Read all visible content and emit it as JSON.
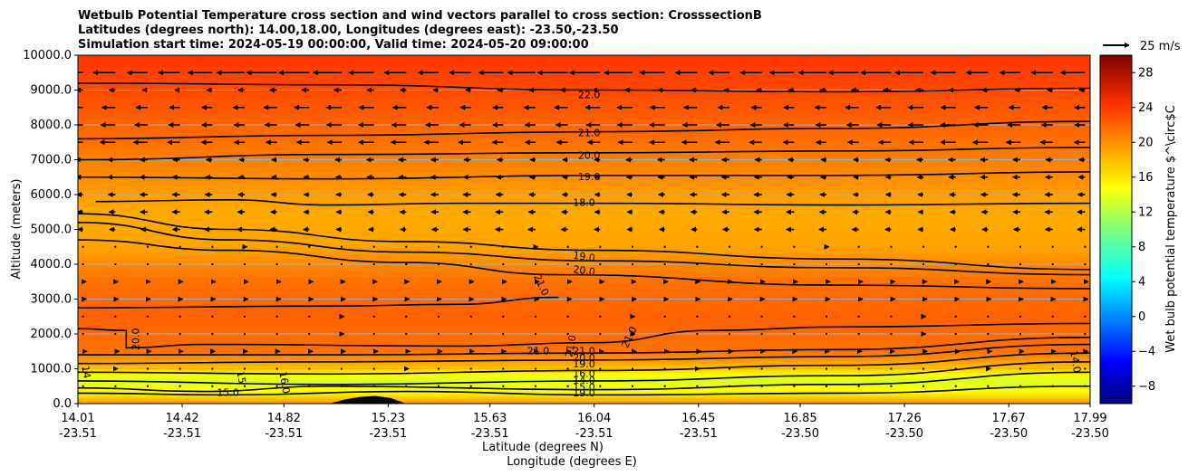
{
  "chart_data": {
    "type": "heatmap",
    "title_lines": [
      "Wetbulb Potential Temperature cross section and wind vectors parallel to cross section: CrosssectionB",
      "Latitudes (degrees north): 14.00,18.00, Longitudes (degrees east): -23.50,-23.50",
      "Simulation start time: 2024-05-19 00:00:00, Valid time: 2024-05-20 09:00:00"
    ],
    "ylabel": "Altitude (meters)",
    "xlabel_lat": "Latitude (degrees N)",
    "xlabel_lon": "Longitude (degrees E)",
    "ylim": [
      0,
      10000
    ],
    "xlim": [
      14.01,
      17.99
    ],
    "yticks": [
      "0.0",
      "1000.0",
      "2000.0",
      "3000.0",
      "4000.0",
      "5000.0",
      "6000.0",
      "7000.0",
      "8000.0",
      "9000.0",
      "10000.0"
    ],
    "xticks": [
      {
        "lat": "14.01",
        "lon": "-23.51",
        "v": 14.01
      },
      {
        "lat": "14.42",
        "lon": "-23.51",
        "v": 14.42
      },
      {
        "lat": "14.82",
        "lon": "-23.51",
        "v": 14.82
      },
      {
        "lat": "15.23",
        "lon": "-23.51",
        "v": 15.23
      },
      {
        "lat": "15.63",
        "lon": "-23.51",
        "v": 15.63
      },
      {
        "lat": "16.04",
        "lon": "-23.51",
        "v": 16.04
      },
      {
        "lat": "16.45",
        "lon": "-23.51",
        "v": 16.45
      },
      {
        "lat": "16.85",
        "lon": "-23.50",
        "v": 16.85
      },
      {
        "lat": "17.26",
        "lon": "-23.50",
        "v": 17.26
      },
      {
        "lat": "17.67",
        "lon": "-23.50",
        "v": 17.67
      },
      {
        "lat": "17.99",
        "lon": "-23.50",
        "v": 17.99
      }
    ],
    "grid": "horizontal",
    "colorbar": {
      "label": "Wet bulb potential temperature $^\\circ$C",
      "range": [
        -10,
        30
      ],
      "ticks": [
        -8,
        -4,
        0,
        4,
        8,
        12,
        16,
        20,
        24,
        28
      ],
      "colormap": "jet"
    },
    "quiver_key": "25 m/s",
    "field_bands": [
      {
        "alt": 0,
        "temp": 19.5
      },
      {
        "alt": 300,
        "temp": 15.5
      },
      {
        "alt": 700,
        "temp": 13.5
      },
      {
        "alt": 1100,
        "temp": 18.0
      },
      {
        "alt": 1500,
        "temp": 20.5
      },
      {
        "alt": 2500,
        "temp": 21.2
      },
      {
        "alt": 3500,
        "temp": 20.6
      },
      {
        "alt": 4500,
        "temp": 18.6
      },
      {
        "alt": 5500,
        "temp": 18.3
      },
      {
        "alt": 6500,
        "temp": 19.4
      },
      {
        "alt": 7500,
        "temp": 20.6
      },
      {
        "alt": 8500,
        "temp": 21.6
      },
      {
        "alt": 9500,
        "temp": 22.5
      },
      {
        "alt": 10000,
        "temp": 23.0
      }
    ],
    "contours": [
      {
        "level": "22.0",
        "points": [
          [
            14.01,
            9200
          ],
          [
            15.0,
            9150
          ],
          [
            16.04,
            9000
          ],
          [
            17.0,
            8950
          ],
          [
            17.99,
            9050
          ]
        ]
      },
      {
        "level": "21.0",
        "points": [
          [
            14.01,
            7600
          ],
          [
            15.0,
            7700
          ],
          [
            16.04,
            7800
          ],
          [
            17.0,
            7900
          ],
          [
            17.99,
            8100
          ]
        ]
      },
      {
        "level": "20.0",
        "points": [
          [
            14.01,
            7000
          ],
          [
            15.0,
            7150
          ],
          [
            16.04,
            7200
          ],
          [
            17.0,
            7250
          ],
          [
            17.99,
            7350
          ]
        ]
      },
      {
        "level": "19.0",
        "points": [
          [
            14.01,
            6500
          ],
          [
            15.0,
            6450
          ],
          [
            16.04,
            6550
          ],
          [
            17.0,
            6550
          ],
          [
            17.99,
            6650
          ]
        ]
      },
      {
        "level": "18.0",
        "points": [
          [
            14.08,
            5800
          ],
          [
            14.6,
            5850
          ],
          [
            15.0,
            5700
          ],
          [
            15.5,
            5750
          ],
          [
            16.04,
            5750
          ],
          [
            17.0,
            5700
          ],
          [
            17.99,
            5750
          ]
        ]
      },
      {
        "level": "19.0",
        "points": [
          [
            14.01,
            5450
          ],
          [
            14.6,
            5000
          ],
          [
            15.3,
            4650
          ],
          [
            16.04,
            4400
          ],
          [
            17.0,
            4150
          ],
          [
            17.99,
            3850
          ]
        ]
      },
      {
        "level": "20.0",
        "points": [
          [
            14.01,
            5200
          ],
          [
            14.6,
            4700
          ],
          [
            15.3,
            4350
          ],
          [
            16.04,
            4100
          ],
          [
            17.0,
            3900
          ],
          [
            17.99,
            3700
          ]
        ]
      },
      {
        "level": "21.0",
        "points": [
          [
            14.01,
            4700
          ],
          [
            14.6,
            4400
          ],
          [
            15.3,
            4050
          ],
          [
            15.9,
            3700
          ],
          [
            17.0,
            3400
          ],
          [
            17.99,
            3300
          ]
        ]
      },
      {
        "level": "21.0",
        "points": [
          [
            14.01,
            2750
          ],
          [
            15.0,
            2800
          ],
          [
            15.5,
            2850
          ],
          [
            15.9,
            3050
          ]
        ]
      },
      {
        "level": "21.0",
        "points": [
          [
            14.01,
            2150
          ],
          [
            14.2,
            2100
          ],
          [
            14.2,
            1600
          ],
          [
            14.5,
            1700
          ],
          [
            15.5,
            1650
          ],
          [
            16.04,
            1750
          ],
          [
            16.5,
            2100
          ],
          [
            17.0,
            2200
          ],
          [
            17.99,
            2300
          ]
        ]
      },
      {
        "level": "20.0",
        "points": [
          [
            14.01,
            1400
          ],
          [
            15.0,
            1400
          ],
          [
            16.04,
            1450
          ],
          [
            17.0,
            1550
          ],
          [
            17.99,
            1900
          ]
        ]
      },
      {
        "level": "19.0",
        "points": [
          [
            14.01,
            1150
          ],
          [
            15.0,
            1200
          ],
          [
            16.04,
            1250
          ],
          [
            17.0,
            1350
          ],
          [
            17.99,
            1700
          ]
        ]
      },
      {
        "level": "16.0",
        "points": [
          [
            14.01,
            900
          ],
          [
            15.0,
            850
          ],
          [
            16.04,
            950
          ],
          [
            17.0,
            1100
          ],
          [
            17.99,
            1450
          ]
        ]
      },
      {
        "level": "14.0",
        "points": [
          [
            14.01,
            650
          ],
          [
            15.0,
            550
          ],
          [
            16.04,
            650
          ],
          [
            17.0,
            800
          ],
          [
            17.99,
            1200
          ]
        ]
      },
      {
        "level": "15.0",
        "points": [
          [
            14.01,
            450
          ],
          [
            14.5,
            350
          ],
          [
            15.0,
            500
          ],
          [
            16.04,
            400
          ],
          [
            17.0,
            550
          ],
          [
            17.99,
            900
          ]
        ]
      },
      {
        "level": "19.0",
        "points": [
          [
            14.01,
            300
          ],
          [
            14.6,
            250
          ],
          [
            15.3,
            350
          ],
          [
            16.04,
            250
          ],
          [
            17.0,
            300
          ],
          [
            17.99,
            500
          ]
        ]
      }
    ],
    "contour_labels": [
      {
        "text": "22.0",
        "x": 16.02,
        "y": 8850,
        "rot": 0
      },
      {
        "text": "21.0",
        "x": 16.02,
        "y": 7750,
        "rot": 0
      },
      {
        "text": "20.0",
        "x": 16.02,
        "y": 7100,
        "rot": 0
      },
      {
        "text": "19.0",
        "x": 16.02,
        "y": 6500,
        "rot": 0
      },
      {
        "text": "18.0",
        "x": 16.0,
        "y": 5750,
        "rot": 0
      },
      {
        "text": "19.0",
        "x": 16.0,
        "y": 4200,
        "rot": 8
      },
      {
        "text": "20.0",
        "x": 16.0,
        "y": 3800,
        "rot": 8
      },
      {
        "text": "21.0",
        "x": 15.83,
        "y": 3400,
        "rot": 65
      },
      {
        "text": "21.0",
        "x": 15.82,
        "y": 1500,
        "rot": 0
      },
      {
        "text": "21.0",
        "x": 15.95,
        "y": 1650,
        "rot": -80
      },
      {
        "text": "21.0",
        "x": 16.0,
        "y": 1500,
        "rot": 0
      },
      {
        "text": "20.0",
        "x": 16.0,
        "y": 1300,
        "rot": 0
      },
      {
        "text": "19.0",
        "x": 16.0,
        "y": 1120,
        "rot": 0
      },
      {
        "text": "16.0",
        "x": 16.0,
        "y": 850,
        "rot": 0
      },
      {
        "text": "14.0",
        "x": 16.0,
        "y": 650,
        "rot": 0
      },
      {
        "text": "15.0",
        "x": 16.0,
        "y": 450,
        "rot": 0
      },
      {
        "text": "19.0",
        "x": 16.0,
        "y": 280,
        "rot": 0
      },
      {
        "text": "20.0",
        "x": 14.24,
        "y": 1850,
        "rot": -90
      },
      {
        "text": "21.0",
        "x": 16.18,
        "y": 1900,
        "rot": -65
      },
      {
        "text": "15",
        "x": 14.65,
        "y": 750,
        "rot": 80
      },
      {
        "text": "16.0",
        "x": 14.82,
        "y": 600,
        "rot": 80
      },
      {
        "text": "15.0",
        "x": 14.6,
        "y": 300,
        "rot": 0
      },
      {
        "text": "14",
        "x": 14.04,
        "y": 900,
        "rot": 80
      },
      {
        "text": "14.0",
        "x": 17.93,
        "y": 1200,
        "rot": 80
      }
    ],
    "terrain": [
      [
        15.0,
        0
      ],
      [
        15.06,
        120
      ],
      [
        15.12,
        190
      ],
      [
        15.18,
        220
      ],
      [
        15.24,
        160
      ],
      [
        15.3,
        0
      ]
    ],
    "wind_rows": [
      {
        "alt": 9500,
        "u": -4
      },
      {
        "alt": 9000,
        "u": -1
      },
      {
        "alt": 8500,
        "u": -2
      },
      {
        "alt": 8000,
        "u": -2
      },
      {
        "alt": 7500,
        "u": -2
      },
      {
        "alt": 7000,
        "u": -1
      },
      {
        "alt": 6500,
        "u": -1
      },
      {
        "alt": 6000,
        "u": -1
      },
      {
        "alt": 5500,
        "u": -1
      },
      {
        "alt": 5000,
        "u": -1
      },
      {
        "alt": 4500,
        "u": 0.3
      },
      {
        "alt": 4000,
        "u": 0.3
      },
      {
        "alt": 3500,
        "u": 0.5
      },
      {
        "alt": 3000,
        "u": 0.5
      },
      {
        "alt": 2500,
        "u": 0.3
      },
      {
        "alt": 2000,
        "u": 0.3
      },
      {
        "alt": 1500,
        "u": 0.5
      },
      {
        "alt": 1000,
        "u": 0.3
      },
      {
        "alt": 500,
        "u": 0.3
      }
    ]
  }
}
